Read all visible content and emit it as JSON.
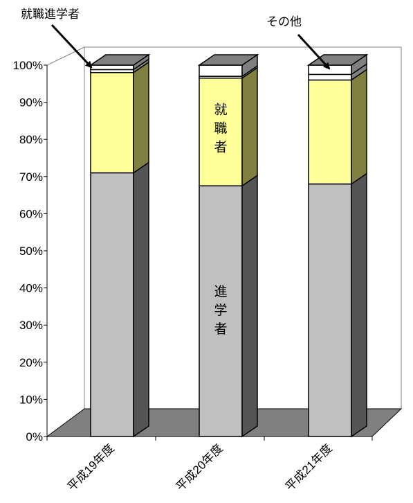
{
  "chart_data": {
    "type": "bar",
    "stacked": true,
    "three_d": true,
    "categories": [
      "平成19年度",
      "平成20年度",
      "平成21年度"
    ],
    "series": [
      {
        "name": "進学者",
        "values": [
          71.0,
          67.5,
          68.0
        ],
        "color": "#c0c0c0"
      },
      {
        "name": "就職者",
        "values": [
          27.0,
          29.0,
          28.0
        ],
        "color": "#ffff99"
      },
      {
        "name": "就職進学者",
        "values": [
          0.8,
          0.5,
          1.5
        ],
        "color": "#ffffff"
      },
      {
        "name": "その他",
        "values": [
          1.2,
          3.0,
          2.5
        ],
        "color": "#ffffff"
      }
    ],
    "ylim": [
      0,
      100
    ],
    "yticks": [
      "0%",
      "10%",
      "20%",
      "30%",
      "40%",
      "50%",
      "60%",
      "70%",
      "80%",
      "90%",
      "100%"
    ],
    "annotations": {
      "employed_progressing": "就職進学者",
      "other": "その他",
      "employed_inline": "就職者",
      "advanced_inline": "進学者"
    },
    "floor_color": "#808080",
    "side_color_dark": "#555555",
    "side_color_yellow": "#808040"
  }
}
